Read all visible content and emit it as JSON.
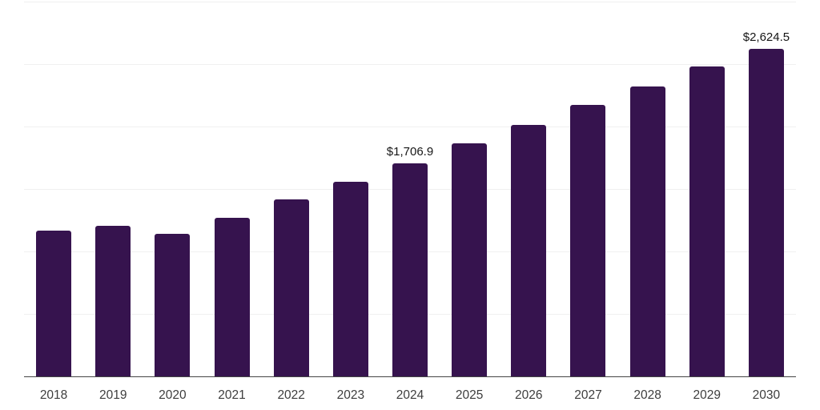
{
  "chart_data": {
    "type": "bar",
    "title": "",
    "xlabel": "",
    "ylabel": "",
    "categories": [
      "2018",
      "2019",
      "2020",
      "2021",
      "2022",
      "2023",
      "2024",
      "2025",
      "2026",
      "2027",
      "2028",
      "2029",
      "2030"
    ],
    "values": [
      1165,
      1205,
      1140,
      1270,
      1415,
      1560,
      1706.9,
      1865,
      2010,
      2175,
      2320,
      2480,
      2624.5
    ],
    "data_labels": [
      null,
      null,
      null,
      null,
      null,
      null,
      "$1,706.9",
      null,
      null,
      null,
      null,
      null,
      "$2,624.5"
    ],
    "ylim": [
      0,
      3000
    ],
    "grid_step": 500,
    "grid": true,
    "legend": false,
    "note": "Only 2024 and 2030 bars carry visible value labels; remaining values estimated from gridlines (500-unit steps).",
    "colors": {
      "bar": "#36134e",
      "grid_line": "#f0f0f0",
      "axis_line": "#454545",
      "tick_label": "#3d3d3d",
      "data_label": "#161616",
      "background": "#ffffff"
    }
  }
}
